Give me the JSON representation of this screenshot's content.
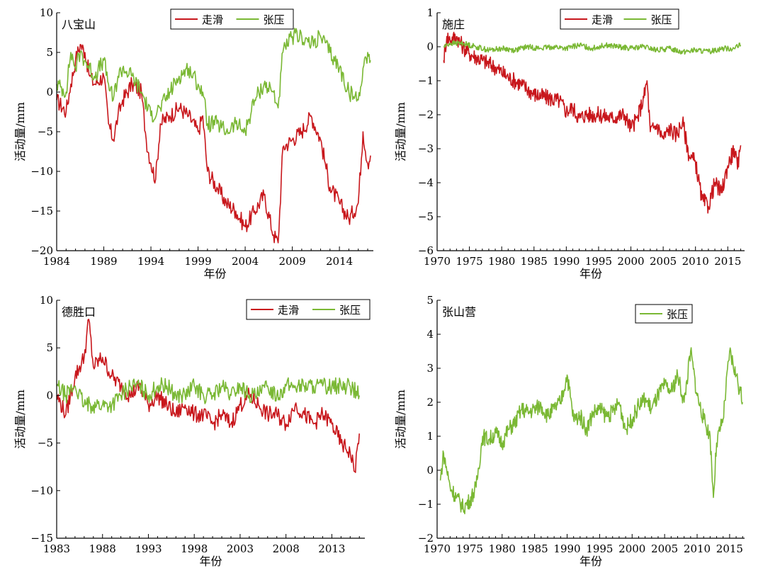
{
  "colors": {
    "strike_slip": "#c8171c",
    "tension": "#7ab834",
    "axis": "#000000",
    "background": "#ffffff"
  },
  "chart_data": [
    {
      "type": "line",
      "station": "八宝山",
      "xlabel": "年份",
      "ylabel": "活动量/mm",
      "xlim": [
        1984,
        2017.6
      ],
      "ylim": [
        -20,
        10
      ],
      "xticks": [
        1984,
        1989,
        1994,
        1999,
        2004,
        2009,
        2014
      ],
      "yticks": [
        -20,
        -15,
        -10,
        -5,
        0,
        5,
        10
      ],
      "ytick_labels": [
        "−20",
        "−15",
        "−10",
        "−5",
        "0",
        "5",
        "10"
      ],
      "legend": {
        "position": "top-center",
        "entries": [
          "走滑",
          "张压"
        ]
      },
      "series": [
        {
          "name": "走滑",
          "color": "#c8171c",
          "x": [
            1984,
            1985,
            1985.5,
            1986,
            1986.5,
            1987,
            1987.5,
            1988,
            1989,
            1989.5,
            1990,
            1990.5,
            1991,
            1992,
            1993,
            1993.5,
            1994,
            1994.5,
            1995,
            1996,
            1997,
            1998,
            1999,
            1999.5,
            2000,
            2001,
            2002,
            2003,
            2004,
            2005,
            2006,
            2007,
            2007.5,
            2008,
            2009,
            2010,
            2011,
            2012,
            2012.5,
            2013,
            2014,
            2015,
            2016,
            2016.5,
            2017,
            2017.3
          ],
          "y": [
            -1,
            -2.5,
            1,
            4,
            6,
            5,
            2,
            1,
            2,
            -4,
            -6,
            -3,
            -1,
            1,
            0,
            -6,
            -9,
            -11,
            -4,
            -3,
            -2,
            -3,
            -5,
            -3,
            -10,
            -12,
            -14,
            -15,
            -17,
            -15,
            -13,
            -18,
            -19,
            -7,
            -6,
            -5,
            -3,
            -6,
            -9,
            -12,
            -14,
            -16,
            -14,
            -5,
            -9,
            -8
          ]
        },
        {
          "name": "张压",
          "color": "#7ab834",
          "x": [
            1984,
            1985,
            1985.5,
            1986,
            1986.5,
            1987,
            1988,
            1989,
            1989.5,
            1990,
            1990.5,
            1991,
            1992,
            1993,
            1994,
            1995,
            1996,
            1997,
            1998,
            1999,
            1999.5,
            2000,
            2001,
            2002,
            2003,
            2004,
            2005,
            2006,
            2007,
            2007.5,
            2008,
            2009,
            2010,
            2011,
            2012,
            2013,
            2014,
            2015,
            2016,
            2016.5,
            2017,
            2017.3
          ],
          "y": [
            1,
            0,
            5,
            3,
            5,
            4,
            2,
            4,
            1,
            -1,
            2,
            3,
            2,
            0,
            -3,
            -2,
            0,
            2,
            3,
            1,
            0,
            -4,
            -4,
            -5,
            -4,
            -5,
            -1,
            1,
            0,
            -2,
            5,
            7,
            7,
            6,
            7,
            5,
            3,
            0,
            -1,
            3,
            5,
            4
          ]
        }
      ]
    },
    {
      "type": "line",
      "station": "施庄",
      "xlabel": "年份",
      "ylabel": "活动量/mm",
      "xlim": [
        1970,
        2017.6
      ],
      "ylim": [
        -6,
        1
      ],
      "xticks": [
        1970,
        1975,
        1980,
        1985,
        1990,
        1995,
        2000,
        2005,
        2010,
        2015
      ],
      "yticks": [
        -6,
        -5,
        -4,
        -3,
        -2,
        -1,
        0,
        1
      ],
      "ytick_labels": [
        "−6",
        "−5",
        "−4",
        "−3",
        "−2",
        "−1",
        "0",
        "1"
      ],
      "legend": {
        "position": "top-center",
        "entries": [
          "走滑",
          "张压"
        ]
      },
      "series": [
        {
          "name": "走滑",
          "color": "#c8171c",
          "x": [
            1971,
            1971.5,
            1972,
            1973,
            1974,
            1975,
            1977,
            1979,
            1981,
            1983,
            1985,
            1987,
            1989,
            1990,
            1991,
            1992,
            1993,
            1995,
            1997,
            1999,
            2000,
            2001,
            2002,
            2002.5,
            2003,
            2004,
            2005,
            2006,
            2007,
            2008,
            2009,
            2010,
            2011,
            2012,
            2013,
            2014,
            2015,
            2016,
            2016.5,
            2017
          ],
          "y": [
            -0.4,
            0.3,
            0.2,
            0.3,
            0,
            -0.2,
            -0.4,
            -0.6,
            -0.9,
            -1.1,
            -1.4,
            -1.5,
            -1.6,
            -1.9,
            -1.8,
            -2.1,
            -2,
            -2,
            -2.1,
            -2,
            -2.4,
            -2.1,
            -1.5,
            -1,
            -2.5,
            -2.3,
            -2.7,
            -2.4,
            -2.6,
            -2.2,
            -3.2,
            -3.4,
            -4.5,
            -4.7,
            -4,
            -4.3,
            -3.5,
            -3,
            -3.6,
            -2.9
          ]
        },
        {
          "name": "张压",
          "color": "#7ab834",
          "x": [
            1971,
            1972,
            1974,
            1976,
            1978,
            1980,
            1982,
            1984,
            1986,
            1988,
            1990,
            1992,
            1994,
            1996,
            1998,
            2000,
            2002,
            2004,
            2006,
            2008,
            2010,
            2012,
            2014,
            2016,
            2017
          ],
          "y": [
            0,
            0.1,
            0.1,
            0,
            -0.1,
            -0.05,
            -0.1,
            0,
            -0.05,
            0,
            -0.05,
            0.05,
            -0.05,
            0.05,
            0,
            -0.05,
            0,
            -0.1,
            -0.05,
            -0.15,
            -0.1,
            -0.15,
            -0.05,
            -0.05,
            0.05
          ]
        }
      ]
    },
    {
      "type": "line",
      "station": "德胜口",
      "xlabel": "年份",
      "ylabel": "活动量/mm",
      "xlim": [
        1983,
        2016.6
      ],
      "ylim": [
        -15,
        10
      ],
      "xticks": [
        1983,
        1988,
        1993,
        1998,
        2003,
        2008,
        2013
      ],
      "yticks": [
        -15,
        -10,
        -5,
        0,
        5,
        10
      ],
      "ytick_labels": [
        "−15",
        "−10",
        "−5",
        "0",
        "5",
        "10"
      ],
      "legend": {
        "position": "top-right",
        "entries": [
          "走滑",
          "张压"
        ]
      },
      "series": [
        {
          "name": "走滑",
          "color": "#c8171c",
          "x": [
            1983,
            1984,
            1985,
            1986,
            1986.5,
            1987,
            1988,
            1989,
            1990,
            1991,
            1992,
            1993,
            1994,
            1995,
            1996,
            1997,
            1998,
            1999,
            2000,
            2001,
            2002,
            2003,
            2004,
            2005,
            2006,
            2007,
            2008,
            2009,
            2010,
            2011,
            2012,
            2013,
            2014,
            2015,
            2015.5,
            2016
          ],
          "y": [
            0,
            -2,
            2,
            4,
            8,
            3,
            4,
            2,
            1,
            0,
            1,
            -1,
            0,
            -1,
            -2,
            -1,
            -2,
            -2,
            -3,
            -2,
            -3,
            -1,
            0,
            -1,
            -2,
            -2,
            -3,
            -1,
            -2,
            -3,
            -2,
            -3,
            -5,
            -6,
            -8,
            -4
          ]
        },
        {
          "name": "张压",
          "color": "#7ab834",
          "x": [
            1983,
            1984,
            1985,
            1986,
            1987,
            1988,
            1989,
            1990,
            1991,
            1992,
            1993,
            1994,
            1995,
            1996,
            1997,
            1998,
            1999,
            2000,
            2001,
            2002,
            2003,
            2004,
            2005,
            2006,
            2007,
            2008,
            2009,
            2010,
            2011,
            2012,
            2013,
            2014,
            2015,
            2016
          ],
          "y": [
            1,
            0,
            1,
            -1,
            -1,
            -1,
            -1,
            0,
            1,
            1,
            0,
            1,
            1,
            0,
            0,
            1,
            0,
            0,
            1,
            0,
            1,
            0,
            0,
            1,
            0,
            1,
            1,
            1,
            1,
            1,
            1,
            1,
            1,
            0
          ]
        }
      ]
    },
    {
      "type": "line",
      "station": "张山营",
      "xlabel": "年份",
      "ylabel": "活动量/mm",
      "xlim": [
        1970,
        2017.3
      ],
      "ylim": [
        -2,
        5
      ],
      "xticks": [
        1970,
        1975,
        1980,
        1985,
        1990,
        1995,
        2000,
        2005,
        2010,
        2015
      ],
      "yticks": [
        -2,
        -1,
        0,
        1,
        2,
        3,
        4,
        5
      ],
      "ytick_labels": [
        "−2",
        "−1",
        "0",
        "1",
        "2",
        "3",
        "4",
        "5"
      ],
      "legend": {
        "position": "top-center",
        "entries": [
          "张压"
        ]
      },
      "series": [
        {
          "name": "张压",
          "color": "#7ab834",
          "x": [
            1970.5,
            1971,
            1972,
            1973,
            1974,
            1975,
            1976,
            1977,
            1978,
            1979,
            1980,
            1981,
            1982,
            1983,
            1984,
            1985,
            1986,
            1987,
            1988,
            1989,
            1990,
            1991,
            1992,
            1993,
            1994,
            1995,
            1996,
            1997,
            1998,
            1999,
            2000,
            2001,
            2002,
            2003,
            2004,
            2005,
            2006,
            2007,
            2008,
            2009,
            2010,
            2011,
            2012,
            2012.5,
            2013,
            2014,
            2015,
            2016,
            2017
          ],
          "y": [
            -0.3,
            0.5,
            -0.5,
            -0.8,
            -1.1,
            -0.9,
            -0.5,
            1,
            0.9,
            1.1,
            0.8,
            1.2,
            1.4,
            1.8,
            1.7,
            1.8,
            1.9,
            1.6,
            1.8,
            2,
            2.8,
            1.5,
            1.6,
            1.2,
            1.7,
            1.8,
            1.6,
            1.7,
            2,
            1.2,
            1.5,
            1.9,
            2.1,
            1.8,
            2.2,
            2.5,
            2.3,
            2.8,
            2,
            3.5,
            2.2,
            1.5,
            1,
            -0.8,
            0.8,
            1.5,
            3.5,
            2.8,
            2
          ]
        }
      ]
    }
  ]
}
